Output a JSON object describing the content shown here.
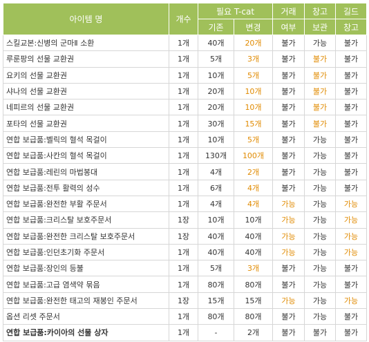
{
  "header": {
    "item_name": "아이템 명",
    "count": "개수",
    "tcat": "필요 T-cat",
    "basic": "기존",
    "changed": "변경",
    "trade_1": "거래",
    "trade_2": "여부",
    "storage_1": "창고",
    "storage_2": "보관",
    "guild_1": "길드",
    "guild_2": "창고"
  },
  "highlight_color": "#e08a00",
  "header_bg_color": "#a0c05a",
  "rows": [
    {
      "name": "스킬교본:신병의 군마Ⅱ 소환",
      "count": "1개",
      "basic": "40개",
      "changed": "20개",
      "trade": "불가",
      "storage": "가능",
      "guild": "불가",
      "hl": [
        false,
        true,
        false,
        false,
        false
      ]
    },
    {
      "name": "루룬팡의 선물 교환권",
      "count": "1개",
      "basic": "5개",
      "changed": "3개",
      "trade": "불가",
      "storage": "불가",
      "guild": "불가",
      "hl": [
        false,
        true,
        false,
        true,
        false
      ]
    },
    {
      "name": "요키의 선물 교환권",
      "count": "1개",
      "basic": "10개",
      "changed": "5개",
      "trade": "불가",
      "storage": "불가",
      "guild": "불가",
      "hl": [
        false,
        true,
        false,
        true,
        false
      ]
    },
    {
      "name": "샤나의 선물 교환권",
      "count": "1개",
      "basic": "20개",
      "changed": "10개",
      "trade": "불가",
      "storage": "불가",
      "guild": "불가",
      "hl": [
        false,
        true,
        false,
        true,
        false
      ]
    },
    {
      "name": "네피르의 선물 교환권",
      "count": "1개",
      "basic": "20개",
      "changed": "10개",
      "trade": "불가",
      "storage": "불가",
      "guild": "불가",
      "hl": [
        false,
        true,
        false,
        true,
        false
      ]
    },
    {
      "name": "포타의 선물 교환권",
      "count": "1개",
      "basic": "30개",
      "changed": "15개",
      "trade": "불가",
      "storage": "불가",
      "guild": "불가",
      "hl": [
        false,
        true,
        false,
        true,
        false
      ]
    },
    {
      "name": "연합 보급품:벨릭의 혈석 목걸이",
      "count": "1개",
      "basic": "10개",
      "changed": "5개",
      "trade": "불가",
      "storage": "가능",
      "guild": "불가",
      "hl": [
        false,
        true,
        false,
        false,
        false
      ]
    },
    {
      "name": "연합 보급품:사칸의 혈석 목걸이",
      "count": "1개",
      "basic": "130개",
      "changed": "100개",
      "trade": "불가",
      "storage": "가능",
      "guild": "불가",
      "hl": [
        false,
        true,
        false,
        false,
        false
      ]
    },
    {
      "name": "연합 보급품:레린의 마법봉대",
      "count": "1개",
      "basic": "4개",
      "changed": "2개",
      "trade": "불가",
      "storage": "가능",
      "guild": "불가",
      "hl": [
        false,
        true,
        false,
        false,
        false
      ]
    },
    {
      "name": "연합 보급품:전투 활력의 성수",
      "count": "1개",
      "basic": "6개",
      "changed": "4개",
      "trade": "불가",
      "storage": "가능",
      "guild": "불가",
      "hl": [
        false,
        true,
        false,
        false,
        false
      ]
    },
    {
      "name": "연합 보급품:완전한 부활 주문서",
      "count": "1개",
      "basic": "4개",
      "changed": "4개",
      "trade": "가능",
      "storage": "가능",
      "guild": "가능",
      "hl": [
        false,
        true,
        true,
        false,
        true
      ]
    },
    {
      "name": "연합 보급품:크리스탈 보호주문서",
      "count": "1장",
      "basic": "10개",
      "changed": "10개",
      "trade": "가능",
      "storage": "가능",
      "guild": "가능",
      "hl": [
        false,
        false,
        true,
        false,
        true
      ]
    },
    {
      "name": "연합 보급품:완전한 크리스탈 보호주문서",
      "count": "1장",
      "basic": "40개",
      "changed": "40개",
      "trade": "가능",
      "storage": "가능",
      "guild": "가능",
      "hl": [
        false,
        false,
        true,
        false,
        true
      ]
    },
    {
      "name": "연합 보급품:인던초기화 주문서",
      "count": "1개",
      "basic": "40개",
      "changed": "40개",
      "trade": "가능",
      "storage": "가능",
      "guild": "가능",
      "hl": [
        false,
        false,
        true,
        false,
        true
      ]
    },
    {
      "name": "연합 보급품:장인의 등불",
      "count": "1개",
      "basic": "5개",
      "changed": "3개",
      "trade": "불가",
      "storage": "가능",
      "guild": "불가",
      "hl": [
        false,
        true,
        false,
        false,
        false
      ]
    },
    {
      "name": "연합 보급품:고급 염색약 묶음",
      "count": "1개",
      "basic": "80개",
      "changed": "80개",
      "trade": "불가",
      "storage": "가능",
      "guild": "불가",
      "hl": [
        false,
        false,
        false,
        false,
        false
      ]
    },
    {
      "name": "연합 보급품:완전한 태고의 재봉인 주문서",
      "count": "1장",
      "basic": "15개",
      "changed": "15개",
      "trade": "가능",
      "storage": "가능",
      "guild": "가능",
      "hl": [
        false,
        false,
        true,
        false,
        true
      ]
    },
    {
      "name": "옵션 리셋 주문서",
      "count": "1개",
      "basic": "80개",
      "changed": "80개",
      "trade": "불가",
      "storage": "가능",
      "guild": "불가",
      "hl": [
        false,
        false,
        false,
        false,
        false
      ]
    },
    {
      "name": "연합 보급품:카이아의 선물 상자",
      "count": "1개",
      "basic": "-",
      "changed": "2개",
      "trade": "불가",
      "storage": "불가",
      "guild": "불가",
      "hl": [
        false,
        false,
        false,
        false,
        false
      ]
    }
  ]
}
